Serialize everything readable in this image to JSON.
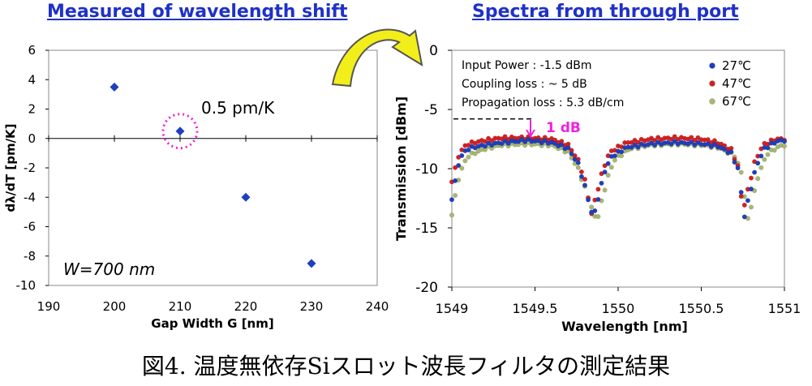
{
  "caption": "図4. 温度無依存Siスロット波長フィルタの測定結果",
  "chart_data": [
    {
      "type": "scatter",
      "title": "Measured of wavelength shift",
      "xlabel": "Gap Width G [nm]",
      "ylabel": "dλ/dT [pm/K]",
      "xlim": [
        190,
        240
      ],
      "ylim": [
        -10,
        6
      ],
      "xticks": [
        190,
        200,
        210,
        220,
        230,
        240
      ],
      "yticks": [
        6,
        4,
        2,
        0,
        -2,
        -4,
        -6,
        -8,
        -10
      ],
      "points": [
        {
          "x": 200,
          "y": 3.5
        },
        {
          "x": 210,
          "y": 0.5
        },
        {
          "x": 220,
          "y": -4.0
        },
        {
          "x": 230,
          "y": -8.5
        }
      ],
      "marker_color": "#1f3fbf",
      "highlight_color": "#ee22dd",
      "annotation": "0.5 pm/K",
      "note": "W=700 nm",
      "grid": false
    },
    {
      "type": "scatter",
      "title": "Spectra from through port",
      "xlabel": "Wavelength [nm]",
      "ylabel": "Transmission [dBm]",
      "xlim": [
        1549,
        1551
      ],
      "ylim": [
        -20,
        0
      ],
      "xticks": [
        1549,
        1549.5,
        1550,
        1550.5,
        1551
      ],
      "yticks": [
        0,
        -5,
        -10,
        -15,
        -20
      ],
      "info": [
        "Input Power : -1.5 dBm",
        "Coupling loss : ~ 5 dB",
        "Propagation loss : 5.3 dB/cm"
      ],
      "annotation": "1 dB",
      "annotation_color": "#ee22dd",
      "dashed_reference_dBm": -5.8,
      "legend_position": "top-right",
      "series": [
        {
          "name": "27℃",
          "color": "#1f3fbf",
          "baseline": [
            [
              1549.0,
              -12.5
            ],
            [
              1549.05,
              -9.0
            ],
            [
              1549.1,
              -8.3
            ],
            [
              1549.2,
              -8.0
            ],
            [
              1549.3,
              -7.8
            ],
            [
              1549.45,
              -7.6
            ],
            [
              1549.6,
              -7.8
            ],
            [
              1549.7,
              -8.3
            ],
            [
              1549.76,
              -9.6
            ],
            [
              1549.8,
              -11.5
            ]
          ],
          "dips": [
            {
              "center": 1549.85,
              "min": -14.2,
              "half_width": 0.035
            },
            {
              "center": 1550.76,
              "min": -14.0,
              "half_width": 0.035
            }
          ],
          "shoulders": [
            [
              1549.92,
              -10.2
            ],
            [
              1549.96,
              -9.0
            ],
            [
              1550.05,
              -8.2
            ],
            [
              1550.2,
              -7.9
            ],
            [
              1550.35,
              -7.8
            ],
            [
              1550.5,
              -7.9
            ],
            [
              1550.6,
              -8.1
            ],
            [
              1550.68,
              -8.7
            ],
            [
              1550.72,
              -10.0
            ],
            [
              1550.83,
              -9.8
            ],
            [
              1550.88,
              -8.3
            ],
            [
              1550.95,
              -7.7
            ],
            [
              1551.0,
              -7.6
            ]
          ]
        },
        {
          "name": "47℃",
          "color": "#d62020",
          "baseline": [
            [
              1549.0,
              -11.0
            ],
            [
              1549.05,
              -8.5
            ],
            [
              1549.1,
              -7.9
            ],
            [
              1549.2,
              -7.6
            ],
            [
              1549.3,
              -7.4
            ],
            [
              1549.45,
              -7.4
            ],
            [
              1549.6,
              -7.5
            ],
            [
              1549.7,
              -8.0
            ],
            [
              1549.76,
              -9.3
            ],
            [
              1549.8,
              -11.0
            ]
          ],
          "dips": [
            {
              "center": 1549.84,
              "min": -13.8,
              "half_width": 0.035
            },
            {
              "center": 1550.75,
              "min": -13.6,
              "half_width": 0.035
            }
          ],
          "shoulders": [
            [
              1549.91,
              -10.0
            ],
            [
              1549.95,
              -8.6
            ],
            [
              1550.05,
              -7.8
            ],
            [
              1550.2,
              -7.5
            ],
            [
              1550.35,
              -7.4
            ],
            [
              1550.5,
              -7.5
            ],
            [
              1550.6,
              -7.8
            ],
            [
              1550.68,
              -8.4
            ],
            [
              1550.72,
              -9.8
            ],
            [
              1550.82,
              -9.5
            ],
            [
              1550.87,
              -8.0
            ],
            [
              1550.95,
              -7.5
            ],
            [
              1551.0,
              -7.5
            ]
          ]
        },
        {
          "name": "67℃",
          "color": "#a8b870",
          "baseline": [
            [
              1549.0,
              -13.8
            ],
            [
              1549.05,
              -10.2
            ],
            [
              1549.1,
              -8.9
            ],
            [
              1549.2,
              -8.3
            ],
            [
              1549.3,
              -8.0
            ],
            [
              1549.45,
              -7.9
            ],
            [
              1549.6,
              -8.0
            ],
            [
              1549.7,
              -8.6
            ],
            [
              1549.76,
              -10.0
            ],
            [
              1549.81,
              -12.0
            ]
          ],
          "dips": [
            {
              "center": 1549.87,
              "min": -14.5,
              "half_width": 0.035
            },
            {
              "center": 1550.78,
              "min": -14.3,
              "half_width": 0.035
            }
          ],
          "shoulders": [
            [
              1549.94,
              -10.6
            ],
            [
              1549.98,
              -9.2
            ],
            [
              1550.07,
              -8.3
            ],
            [
              1550.2,
              -8.0
            ],
            [
              1550.35,
              -7.9
            ],
            [
              1550.5,
              -8.0
            ],
            [
              1550.6,
              -8.2
            ],
            [
              1550.7,
              -8.9
            ],
            [
              1550.74,
              -10.3
            ],
            [
              1550.85,
              -10.2
            ],
            [
              1550.9,
              -8.7
            ],
            [
              1550.97,
              -8.1
            ],
            [
              1551.0,
              -8.0
            ]
          ]
        }
      ]
    }
  ]
}
